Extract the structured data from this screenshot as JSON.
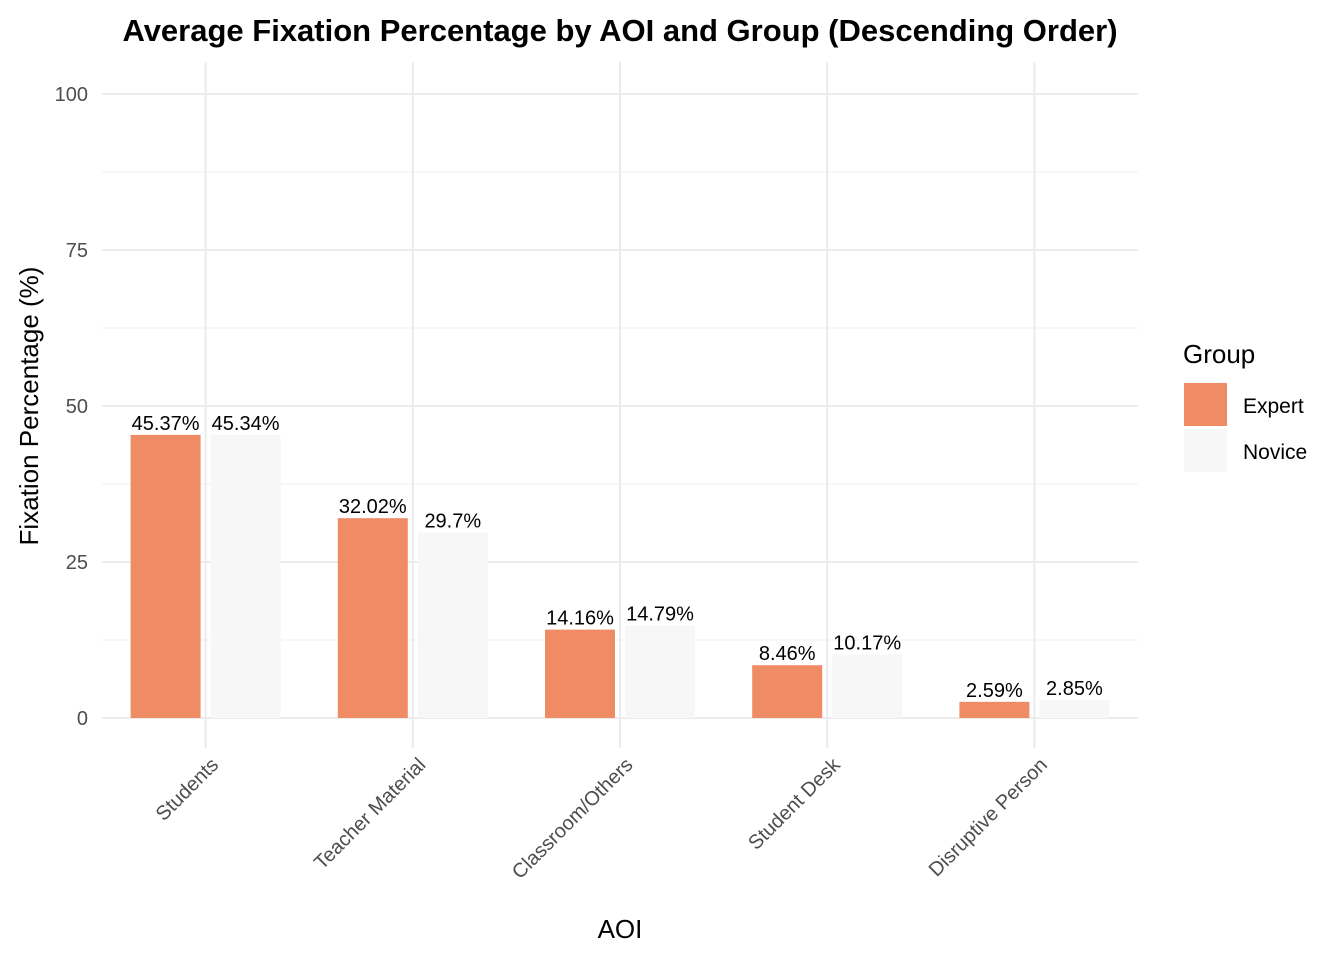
{
  "chart_data": {
    "type": "bar",
    "title": "Average Fixation Percentage by AOI and Group (Descending Order)",
    "xlabel": "AOI",
    "ylabel": "Fixation Percentage (%)",
    "ylim": [
      0,
      100
    ],
    "yticks": [
      0,
      25,
      50,
      75,
      100
    ],
    "grid": true,
    "legend": {
      "title": "Group",
      "position": "right"
    },
    "categories": [
      "Students",
      "Teacher Material",
      "Classroom/Others",
      "Student Desk",
      "Disruptive Person"
    ],
    "series": [
      {
        "name": "Expert",
        "color": "#EF8B65",
        "values": [
          45.37,
          32.02,
          14.16,
          8.46,
          2.59
        ],
        "labels": [
          "45.37%",
          "32.02%",
          "14.16%",
          "8.46%",
          "2.59%"
        ]
      },
      {
        "name": "Novice",
        "color": "#F7F7F7",
        "values": [
          45.34,
          29.7,
          14.79,
          10.17,
          2.85
        ],
        "labels": [
          "45.34%",
          "29.7%",
          "14.79%",
          "10.17%",
          "2.85%"
        ]
      }
    ]
  }
}
